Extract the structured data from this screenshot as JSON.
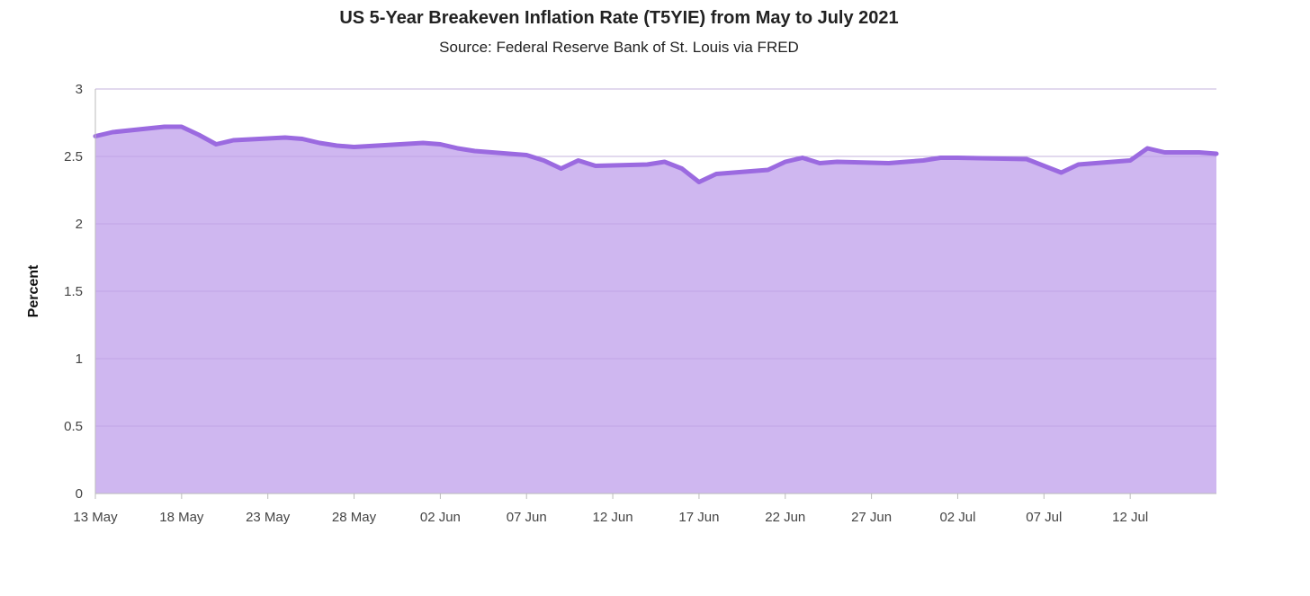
{
  "chart_data": {
    "type": "area",
    "title": "US 5-Year Breakeven Inflation Rate (T5YIE) from May to July 2021",
    "subtitle": "Source: Federal Reserve Bank of St. Louis via FRED",
    "xlabel": "",
    "ylabel": "Percent",
    "ylim": [
      0,
      3
    ],
    "xlim": [
      "2021-05-13",
      "2021-07-17"
    ],
    "yticks": [
      "0",
      "0.5",
      "1",
      "1.5",
      "2",
      "2.5",
      "3"
    ],
    "xticks": [
      {
        "date": "2021-05-13",
        "label": "13 May"
      },
      {
        "date": "2021-05-18",
        "label": "18 May"
      },
      {
        "date": "2021-05-23",
        "label": "23 May"
      },
      {
        "date": "2021-05-28",
        "label": "28 May"
      },
      {
        "date": "2021-06-02",
        "label": "02 Jun"
      },
      {
        "date": "2021-06-07",
        "label": "07 Jun"
      },
      {
        "date": "2021-06-12",
        "label": "12 Jun"
      },
      {
        "date": "2021-06-17",
        "label": "17 Jun"
      },
      {
        "date": "2021-06-22",
        "label": "22 Jun"
      },
      {
        "date": "2021-06-27",
        "label": "27 Jun"
      },
      {
        "date": "2021-07-02",
        "label": "02 Jul"
      },
      {
        "date": "2021-07-07",
        "label": "07 Jul"
      },
      {
        "date": "2021-07-12",
        "label": "12 Jul"
      }
    ],
    "grid": true,
    "colors": {
      "line": "#9b6ae0",
      "fill": "#cfb7f0",
      "grid_light": "#d9d9d9",
      "grid_on_fill": "#b89ae0",
      "axis": "#bbbbbb",
      "text": "#444444"
    },
    "series": [
      {
        "x": [
          "2021-05-13",
          "2021-05-14",
          "2021-05-17",
          "2021-05-18",
          "2021-05-19",
          "2021-05-20",
          "2021-05-21",
          "2021-05-24",
          "2021-05-25",
          "2021-05-26",
          "2021-05-27",
          "2021-05-28",
          "2021-06-01",
          "2021-06-02",
          "2021-06-03",
          "2021-06-04",
          "2021-06-07",
          "2021-06-08",
          "2021-06-09",
          "2021-06-10",
          "2021-06-11",
          "2021-06-14",
          "2021-06-15",
          "2021-06-16",
          "2021-06-17",
          "2021-06-18",
          "2021-06-21",
          "2021-06-22",
          "2021-06-23",
          "2021-06-24",
          "2021-06-25",
          "2021-06-28",
          "2021-06-29",
          "2021-06-30",
          "2021-07-01",
          "2021-07-02",
          "2021-07-06",
          "2021-07-07",
          "2021-07-08",
          "2021-07-09",
          "2021-07-12",
          "2021-07-13",
          "2021-07-14",
          "2021-07-15",
          "2021-07-16",
          "2021-07-17"
        ],
        "values": [
          2.65,
          2.68,
          2.72,
          2.72,
          2.66,
          2.59,
          2.62,
          2.64,
          2.63,
          2.6,
          2.58,
          2.57,
          2.6,
          2.59,
          2.56,
          2.54,
          2.51,
          2.47,
          2.41,
          2.47,
          2.43,
          2.44,
          2.46,
          2.41,
          2.31,
          2.37,
          2.4,
          2.46,
          2.49,
          2.45,
          2.46,
          2.45,
          2.46,
          2.47,
          2.49,
          2.49,
          2.48,
          2.43,
          2.38,
          2.44,
          2.47,
          2.56,
          2.53,
          2.53,
          2.53,
          2.52
        ]
      }
    ]
  }
}
